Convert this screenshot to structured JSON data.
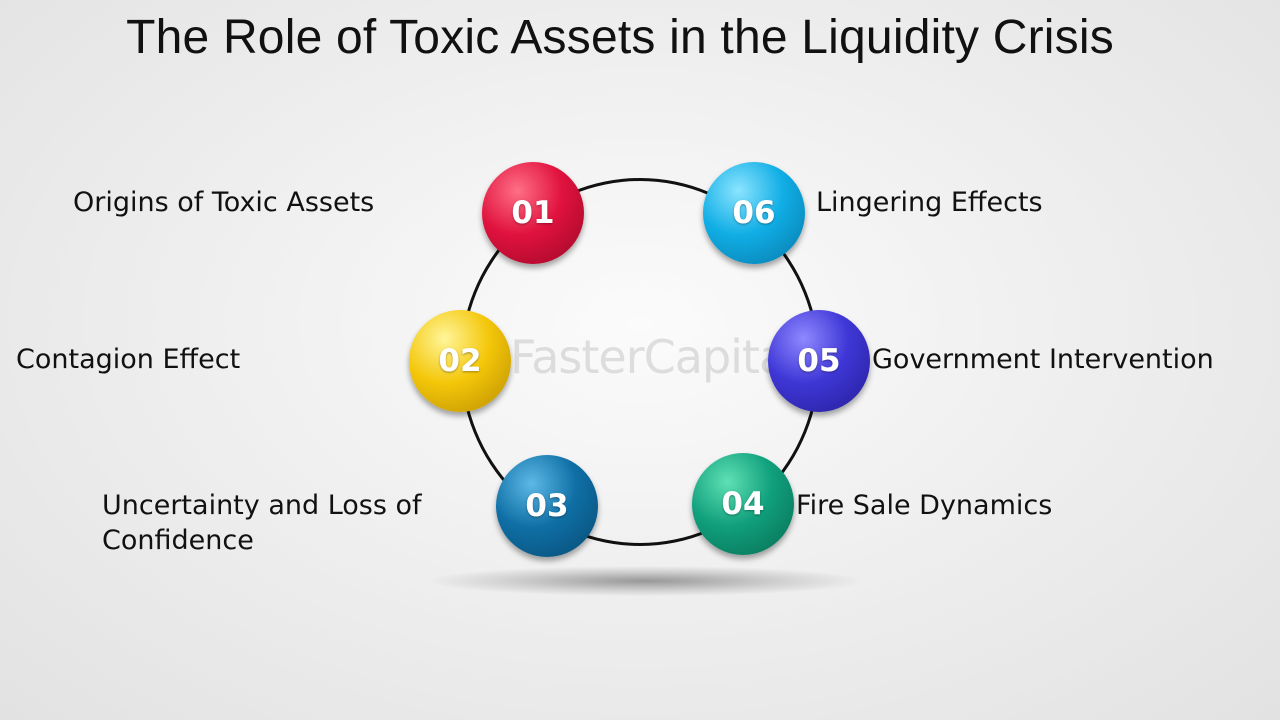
{
  "title": "The Role of Toxic Assets in the Liquidity Crisis",
  "watermark": "FasterCapital",
  "nodes": [
    {
      "number": "01",
      "label": "Origins of Toxic Assets",
      "color": "#e0123e"
    },
    {
      "number": "02",
      "label": "Contagion Effect",
      "color": "#f4c70a"
    },
    {
      "number": "03",
      "label": "Uncertainty and Loss of Confidence",
      "color": "#0f6fa5"
    },
    {
      "number": "04",
      "label": "Fire Sale Dynamics",
      "color": "#10a07c"
    },
    {
      "number": "05",
      "label": "Government Intervention",
      "color": "#3f37d6"
    },
    {
      "number": "06",
      "label": "Lingering Effects",
      "color": "#10aee5"
    }
  ]
}
